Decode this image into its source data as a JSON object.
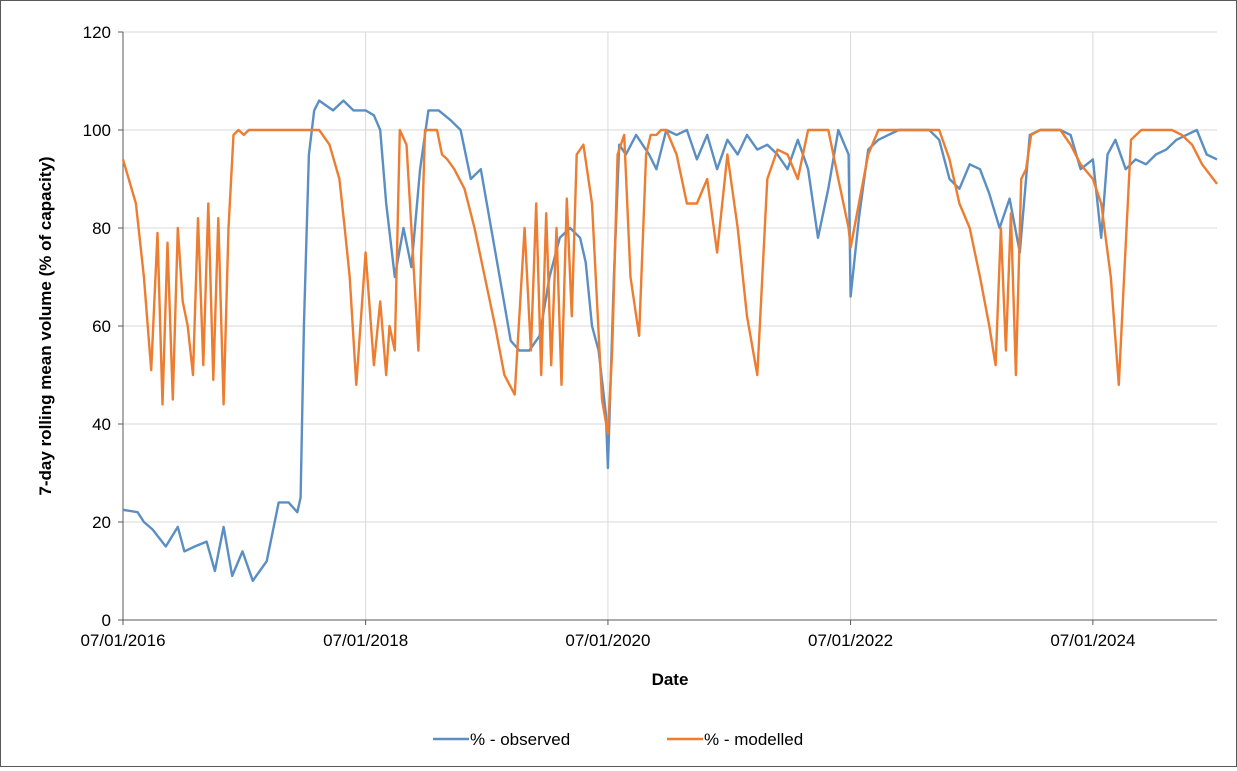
{
  "chart_data": {
    "type": "line",
    "title": "",
    "xlabel": "Date",
    "ylabel": "7-day rolling mean volume (% of capacity)",
    "ylim": [
      0,
      120
    ],
    "yticks": [
      0,
      20,
      40,
      60,
      80,
      100,
      120
    ],
    "xlim": [
      "2016-01-07",
      "2025-01-15"
    ],
    "xticks": [
      "2016-01-07",
      "2018-01-07",
      "2020-01-07",
      "2022-01-07",
      "2024-01-07"
    ],
    "xtick_labels": [
      "07/01/2016",
      "07/01/2018",
      "07/01/2020",
      "07/01/2022",
      "07/01/2024"
    ],
    "grid": "vertical and horizontal major gridlines",
    "legend_position": "bottom",
    "series": [
      {
        "name": "% - observed",
        "color": "#5b8fc3",
        "x": [
          "2016-01-07",
          "2016-02-20",
          "2016-03-10",
          "2016-04-05",
          "2016-05-15",
          "2016-06-20",
          "2016-07-10",
          "2016-08-10",
          "2016-09-15",
          "2016-10-10",
          "2016-11-05",
          "2016-12-01",
          "2017-01-01",
          "2017-02-01",
          "2017-03-15",
          "2017-04-20",
          "2017-05-20",
          "2017-06-15",
          "2017-06-25",
          "2017-07-05",
          "2017-07-20",
          "2017-08-05",
          "2017-08-20",
          "2017-09-10",
          "2017-10-01",
          "2017-11-01",
          "2017-12-01",
          "2018-01-07",
          "2018-02-01",
          "2018-02-20",
          "2018-03-10",
          "2018-04-05",
          "2018-05-01",
          "2018-05-25",
          "2018-06-20",
          "2018-07-15",
          "2018-08-15",
          "2018-09-20",
          "2018-10-20",
          "2018-11-20",
          "2018-12-20",
          "2019-01-20",
          "2019-02-20",
          "2019-03-20",
          "2019-04-15",
          "2019-05-15",
          "2019-06-15",
          "2019-07-15",
          "2019-08-15",
          "2019-09-15",
          "2019-10-15",
          "2019-11-01",
          "2019-11-20",
          "2019-12-10",
          "2020-01-01",
          "2020-01-07",
          "2020-01-25",
          "2020-02-10",
          "2020-03-01",
          "2020-04-01",
          "2020-05-10",
          "2020-06-01",
          "2020-07-01",
          "2020-08-01",
          "2020-09-01",
          "2020-10-01",
          "2020-11-01",
          "2020-12-01",
          "2021-01-01",
          "2021-02-01",
          "2021-03-01",
          "2021-04-01",
          "2021-05-01",
          "2021-06-01",
          "2021-07-01",
          "2021-08-01",
          "2021-09-01",
          "2021-10-01",
          "2021-11-01",
          "2021-12-01",
          "2022-01-01",
          "2022-01-07",
          "2022-02-01",
          "2022-03-01",
          "2022-04-01",
          "2022-05-01",
          "2022-06-01",
          "2022-07-01",
          "2022-08-01",
          "2022-09-01",
          "2022-10-01",
          "2022-11-01",
          "2022-12-01",
          "2023-01-01",
          "2023-02-01",
          "2023-03-01",
          "2023-04-01",
          "2023-05-01",
          "2023-06-01",
          "2023-07-01",
          "2023-08-01",
          "2023-09-01",
          "2023-10-01",
          "2023-11-01",
          "2023-12-01",
          "2024-01-07",
          "2024-02-01",
          "2024-02-20",
          "2024-03-15",
          "2024-04-15",
          "2024-05-15",
          "2024-06-15",
          "2024-07-15",
          "2024-08-15",
          "2024-09-15",
          "2024-10-15",
          "2024-11-15",
          "2024-12-15",
          "2025-01-15"
        ],
        "values": [
          22.5,
          22,
          20,
          18.5,
          15,
          19,
          14,
          15,
          16,
          10,
          19,
          9,
          14,
          8,
          12,
          24,
          24,
          22,
          25,
          60,
          95,
          104,
          106,
          105,
          104,
          106,
          104,
          104,
          103,
          100,
          85,
          70,
          80,
          72,
          92,
          104,
          104,
          102,
          100,
          90,
          92,
          80,
          68,
          57,
          55,
          55,
          58,
          70,
          78,
          80,
          78,
          73,
          60,
          55,
          42,
          31,
          70,
          97,
          95,
          99,
          95,
          92,
          100,
          99,
          100,
          94,
          99,
          92,
          98,
          95,
          99,
          96,
          97,
          95,
          92,
          98,
          92,
          78,
          88,
          100,
          95,
          66,
          82,
          96,
          98,
          99,
          100,
          100,
          100,
          100,
          98,
          90,
          88,
          93,
          92,
          87,
          80,
          86,
          75,
          99,
          100,
          100,
          100,
          99,
          92,
          94,
          78,
          95,
          98,
          92,
          94,
          93,
          95,
          96,
          98,
          99,
          100,
          95,
          94
        ]
      },
      {
        "name": "% - modelled",
        "color": "#ed7d31",
        "x": [
          "2016-01-07",
          "2016-02-15",
          "2016-03-10",
          "2016-04-01",
          "2016-04-20",
          "2016-05-05",
          "2016-05-20",
          "2016-06-05",
          "2016-06-20",
          "2016-07-05",
          "2016-07-20",
          "2016-08-05",
          "2016-08-20",
          "2016-09-05",
          "2016-09-20",
          "2016-10-05",
          "2016-10-20",
          "2016-11-05",
          "2016-11-20",
          "2016-12-05",
          "2016-12-20",
          "2017-01-05",
          "2017-01-20",
          "2017-02-05",
          "2017-02-20",
          "2017-03-05",
          "2017-03-20",
          "2017-04-05",
          "2017-04-25",
          "2017-05-20",
          "2017-06-20",
          "2017-07-20",
          "2017-08-20",
          "2017-09-20",
          "2017-10-20",
          "2017-11-05",
          "2017-11-20",
          "2017-12-10",
          "2018-01-07",
          "2018-02-01",
          "2018-02-20",
          "2018-03-10",
          "2018-03-20",
          "2018-04-05",
          "2018-04-20",
          "2018-05-10",
          "2018-05-25",
          "2018-06-15",
          "2018-07-05",
          "2018-07-25",
          "2018-08-10",
          "2018-08-25",
          "2018-09-10",
          "2018-10-01",
          "2018-11-01",
          "2018-12-01",
          "2019-01-01",
          "2019-02-01",
          "2019-03-01",
          "2019-04-01",
          "2019-05-01",
          "2019-05-20",
          "2019-06-05",
          "2019-06-20",
          "2019-07-05",
          "2019-07-20",
          "2019-08-05",
          "2019-08-20",
          "2019-09-05",
          "2019-09-20",
          "2019-10-05",
          "2019-10-25",
          "2019-11-20",
          "2019-12-20",
          "2020-01-07",
          "2020-01-20",
          "2020-02-05",
          "2020-02-25",
          "2020-03-15",
          "2020-04-10",
          "2020-05-01",
          "2020-05-15",
          "2020-06-01",
          "2020-06-15",
          "2020-07-01",
          "2020-08-01",
          "2020-09-01",
          "2020-10-01",
          "2020-11-01",
          "2020-12-01",
          "2021-01-01",
          "2021-02-01",
          "2021-03-01",
          "2021-04-01",
          "2021-05-01",
          "2021-06-01",
          "2021-07-01",
          "2021-08-01",
          "2021-09-01",
          "2021-10-01",
          "2021-11-01",
          "2021-12-01",
          "2022-01-01",
          "2022-01-07",
          "2022-02-01",
          "2022-03-01",
          "2022-04-01",
          "2022-05-01",
          "2022-06-01",
          "2022-07-01",
          "2022-08-01",
          "2022-09-01",
          "2022-10-01",
          "2022-11-01",
          "2022-12-01",
          "2023-01-01",
          "2023-02-01",
          "2023-03-01",
          "2023-03-20",
          "2023-04-05",
          "2023-04-20",
          "2023-05-05",
          "2023-05-20",
          "2023-06-05",
          "2023-06-20",
          "2023-07-05",
          "2023-08-01",
          "2023-09-01",
          "2023-10-01",
          "2023-11-01",
          "2023-12-01",
          "2024-01-07",
          "2024-02-01",
          "2024-03-01",
          "2024-03-25",
          "2024-04-10",
          "2024-05-01",
          "2024-06-01",
          "2024-07-01",
          "2024-08-01",
          "2024-09-01",
          "2024-10-01",
          "2024-11-01",
          "2024-12-01",
          "2025-01-15"
        ],
        "values": [
          94,
          85,
          70,
          51,
          79,
          44,
          77,
          45,
          80,
          65,
          60,
          50,
          82,
          52,
          85,
          49,
          82,
          44,
          80,
          99,
          100,
          99,
          100,
          100,
          100,
          100,
          100,
          100,
          100,
          100,
          100,
          100,
          100,
          97,
          90,
          80,
          70,
          48,
          75,
          52,
          65,
          50,
          60,
          55,
          100,
          97,
          80,
          55,
          100,
          100,
          100,
          95,
          94,
          92,
          88,
          80,
          70,
          60,
          50,
          46,
          80,
          55,
          85,
          50,
          83,
          52,
          80,
          48,
          86,
          62,
          95,
          97,
          85,
          45,
          38,
          55,
          95,
          99,
          70,
          58,
          95,
          99,
          99,
          100,
          100,
          95,
          85,
          85,
          90,
          75,
          95,
          80,
          62,
          50,
          90,
          96,
          95,
          90,
          100,
          100,
          100,
          90,
          80,
          76,
          85,
          95,
          100,
          100,
          100,
          100,
          100,
          100,
          100,
          94,
          85,
          80,
          70,
          60,
          52,
          80,
          55,
          83,
          50,
          90,
          92,
          99,
          100,
          100,
          100,
          97,
          93,
          90,
          85,
          70,
          48,
          70,
          98,
          100,
          100,
          100,
          100,
          99,
          97,
          93,
          89
        ]
      }
    ]
  }
}
